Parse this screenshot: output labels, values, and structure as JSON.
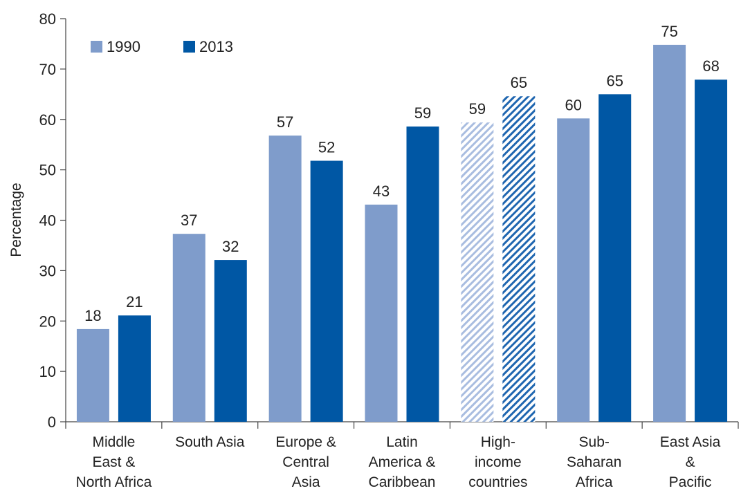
{
  "chart_data": {
    "type": "bar",
    "title": "",
    "xlabel": "",
    "ylabel": "Percentage",
    "ylim": [
      0,
      80
    ],
    "yticks": [
      0,
      10,
      20,
      30,
      40,
      50,
      60,
      70,
      80
    ],
    "grid": false,
    "legend_position": "top-left",
    "categories": [
      [
        "Middle",
        "East &",
        "North Africa"
      ],
      [
        "South Asia"
      ],
      [
        "Europe &",
        "Central",
        "Asia"
      ],
      [
        "Latin",
        "America &",
        "Caribbean"
      ],
      [
        "High-",
        "income",
        "countries"
      ],
      [
        "Sub-",
        "Saharan",
        "Africa"
      ],
      [
        "East Asia",
        "&",
        "Pacific"
      ]
    ],
    "hatched_category_index": 4,
    "series": [
      {
        "name": "1990",
        "color": "#7f9ccb",
        "values": [
          18,
          37,
          57,
          43,
          59,
          60,
          75
        ],
        "exact": [
          18.4,
          37.3,
          56.8,
          43.1,
          59.4,
          60.2,
          74.8
        ]
      },
      {
        "name": "2013",
        "color": "#0057a4",
        "values": [
          21,
          32,
          52,
          59,
          65,
          65,
          68
        ],
        "exact": [
          21.1,
          32.1,
          51.8,
          58.6,
          64.6,
          65.0,
          67.9
        ]
      }
    ]
  }
}
